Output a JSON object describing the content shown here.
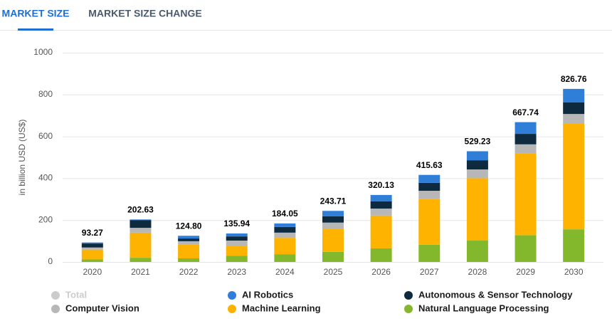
{
  "tabs": [
    "MARKET SIZE",
    "MARKET SIZE CHANGE"
  ],
  "chart_data": {
    "type": "stacked_bar",
    "y_axis_label": "in billion USD (US$)",
    "categories": [
      "2020",
      "2021",
      "2022",
      "2023",
      "2024",
      "2025",
      "2026",
      "2027",
      "2028",
      "2029",
      "2030"
    ],
    "ylim": [
      0,
      1000
    ],
    "yticks": [
      0,
      200,
      400,
      600,
      800,
      1000
    ],
    "grid": true,
    "series": [
      {
        "name": "Total",
        "color": "#cccccc",
        "hidden": true,
        "values": [
          93.27,
          202.63,
          124.8,
          135.94,
          184.05,
          243.71,
          320.13,
          415.63,
          529.23,
          667.74,
          826.76
        ],
        "value_labels": [
          "93.27",
          "202.63",
          "124.80",
          "135.94",
          "184.05",
          "243.71",
          "320.13",
          "415.63",
          "529.23",
          "667.74",
          "826.76"
        ]
      },
      {
        "name": "AI Robotics",
        "color": "#2f7ed8",
        "values": [
          5,
          3,
          13,
          14,
          17,
          26,
          30,
          38,
          43,
          56,
          65
        ]
      },
      {
        "name": "Autonomous & Sensor Technology",
        "color": "#0e2a3f",
        "values": [
          19,
          37,
          13,
          20,
          27,
          30,
          35,
          38,
          44,
          50,
          55
        ]
      },
      {
        "name": "Computer Vision",
        "color": "#b7b7b7",
        "values": [
          10,
          23,
          17,
          24,
          25,
          30,
          33,
          40,
          42,
          42,
          47
        ]
      },
      {
        "name": "Machine Learning",
        "color": "#fdb300",
        "values": [
          47,
          120,
          65,
          48,
          78,
          110,
          157,
          218,
          298,
          392,
          504
        ]
      },
      {
        "name": "Natural Language Processing",
        "color": "#84b82c",
        "values": [
          12,
          20,
          17,
          30,
          37,
          48,
          65,
          82,
          102,
          128,
          156
        ]
      }
    ]
  }
}
